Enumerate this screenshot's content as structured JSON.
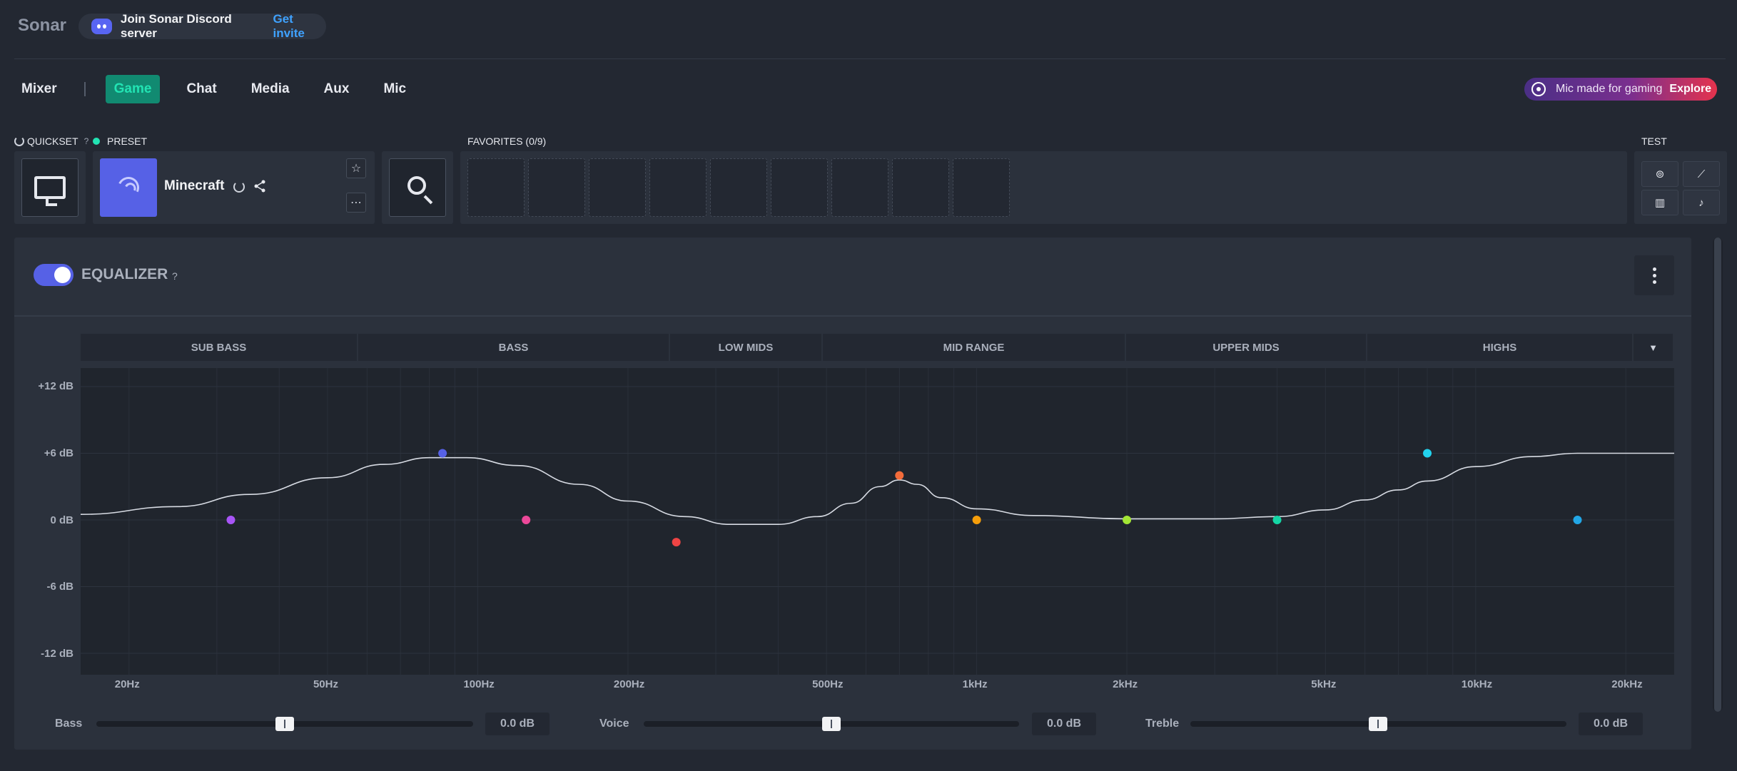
{
  "app": {
    "title": "Sonar"
  },
  "discord": {
    "text": "Join Sonar Discord server",
    "link": "Get invite"
  },
  "tabs": {
    "mixer": "Mixer",
    "items": [
      {
        "label": "Game",
        "active": true
      },
      {
        "label": "Chat",
        "active": false
      },
      {
        "label": "Media",
        "active": false
      },
      {
        "label": "Aux",
        "active": false
      },
      {
        "label": "Mic",
        "active": false
      }
    ]
  },
  "promo": {
    "text": "Mic made for gaming",
    "link": "Explore"
  },
  "quickset": {
    "label": "QUICKSET",
    "help": "?",
    "icon": "monitor-icon"
  },
  "preset": {
    "label": "PRESET",
    "name": "Minecraft",
    "status_color": "#22e3b3"
  },
  "favorites": {
    "label": "FAVORITES (0/9)",
    "slots": 9
  },
  "test": {
    "label": "TEST",
    "buttons": [
      "gamepad-icon",
      "satellite-icon",
      "film-icon",
      "music-icon"
    ]
  },
  "equalizer": {
    "title": "EQUALIZER",
    "help": "?",
    "enabled": true,
    "bands": [
      "SUB BASS",
      "BASS",
      "LOW MIDS",
      "MID RANGE",
      "UPPER MIDS",
      "HIGHS"
    ],
    "y_ticks": [
      "+12 dB",
      "+6 dB",
      "0 dB",
      "-6 dB",
      "-12 dB"
    ],
    "x_ticks": [
      "20Hz",
      "50Hz",
      "100Hz",
      "200Hz",
      "500Hz",
      "1kHz",
      "2kHz",
      "5kHz",
      "10kHz",
      "20kHz"
    ]
  },
  "chart_data": {
    "type": "line",
    "title": "",
    "xlabel": "",
    "ylabel": "",
    "x_scale": "log",
    "xlim": [
      16,
      25000
    ],
    "ylim": [
      -12,
      12
    ],
    "grid": true,
    "nodes": [
      {
        "freq": 32,
        "gain": 0,
        "color": "#a855f7"
      },
      {
        "freq": 85,
        "gain": 6,
        "color": "#5661e6"
      },
      {
        "freq": 125,
        "gain": 0,
        "color": "#ec4899"
      },
      {
        "freq": 250,
        "gain": -2,
        "color": "#ef4444"
      },
      {
        "freq": 700,
        "gain": 4,
        "color": "#f26b3a"
      },
      {
        "freq": 1000,
        "gain": 0,
        "color": "#f59e0b"
      },
      {
        "freq": 2000,
        "gain": 0,
        "color": "#a3e635"
      },
      {
        "freq": 4000,
        "gain": 0,
        "color": "#14d6a5"
      },
      {
        "freq": 8000,
        "gain": 6,
        "color": "#22d3ee"
      },
      {
        "freq": 16000,
        "gain": 0,
        "color": "#22a7e6"
      }
    ],
    "curve": [
      [
        16,
        0.5
      ],
      [
        25,
        1.2
      ],
      [
        35,
        2.3
      ],
      [
        50,
        3.8
      ],
      [
        65,
        5.0
      ],
      [
        80,
        5.6
      ],
      [
        95,
        5.6
      ],
      [
        120,
        4.9
      ],
      [
        160,
        3.2
      ],
      [
        200,
        1.7
      ],
      [
        260,
        0.3
      ],
      [
        320,
        -0.4
      ],
      [
        400,
        -0.4
      ],
      [
        480,
        0.3
      ],
      [
        560,
        1.5
      ],
      [
        640,
        3.0
      ],
      [
        700,
        3.6
      ],
      [
        760,
        3.2
      ],
      [
        850,
        2.0
      ],
      [
        1000,
        1.0
      ],
      [
        1300,
        0.4
      ],
      [
        2000,
        0.1
      ],
      [
        3000,
        0.1
      ],
      [
        4000,
        0.3
      ],
      [
        5000,
        0.9
      ],
      [
        6000,
        1.8
      ],
      [
        7000,
        2.7
      ],
      [
        8000,
        3.5
      ],
      [
        10000,
        4.8
      ],
      [
        13000,
        5.7
      ],
      [
        16000,
        6.0
      ],
      [
        20000,
        6.0
      ],
      [
        25000,
        6.0
      ]
    ]
  },
  "sliders": [
    {
      "label": "Bass",
      "value": "0.0 dB",
      "position": 0.5
    },
    {
      "label": "Voice",
      "value": "0.0 dB",
      "position": 0.5
    },
    {
      "label": "Treble",
      "value": "0.0 dB",
      "position": 0.5
    }
  ]
}
